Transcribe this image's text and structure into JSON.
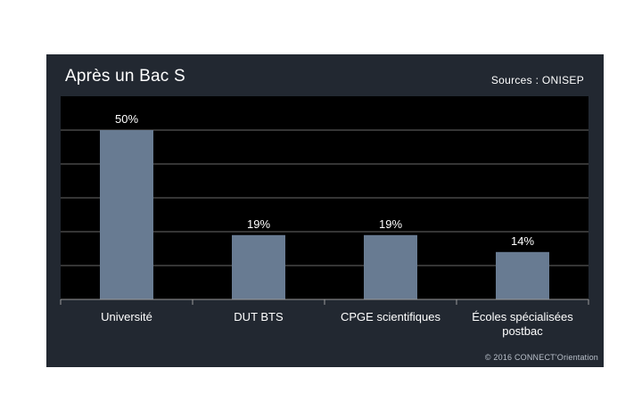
{
  "header": {
    "title": "Après un Bac S",
    "source": "Sources : ONISEP"
  },
  "footer": {
    "copyright": "© 2016 CONNECT'Orientation"
  },
  "colors": {
    "background": "#222831",
    "plot_area": "#000000",
    "bar": "#687b92",
    "gridline": "#6a6a6a",
    "text": "#ffffff"
  },
  "chart_data": {
    "type": "bar",
    "title": "Après un Bac S",
    "categories": [
      "Université",
      "DUT BTS",
      "CPGE scientifiques",
      "Écoles spécialisées postbac"
    ],
    "category_lines": [
      [
        "Université"
      ],
      [
        "DUT BTS"
      ],
      [
        "CPGE scientifiques"
      ],
      [
        "Écoles spécialisées",
        "postbac"
      ]
    ],
    "values": [
      50,
      19,
      19,
      14
    ],
    "value_labels": [
      "50%",
      "19%",
      "19%",
      "14%"
    ],
    "unit": "%",
    "ylim": [
      0,
      60
    ],
    "gridlines": [
      10,
      20,
      30,
      40,
      50
    ],
    "grid": true,
    "legend": "none",
    "xlabel": "",
    "ylabel": ""
  }
}
